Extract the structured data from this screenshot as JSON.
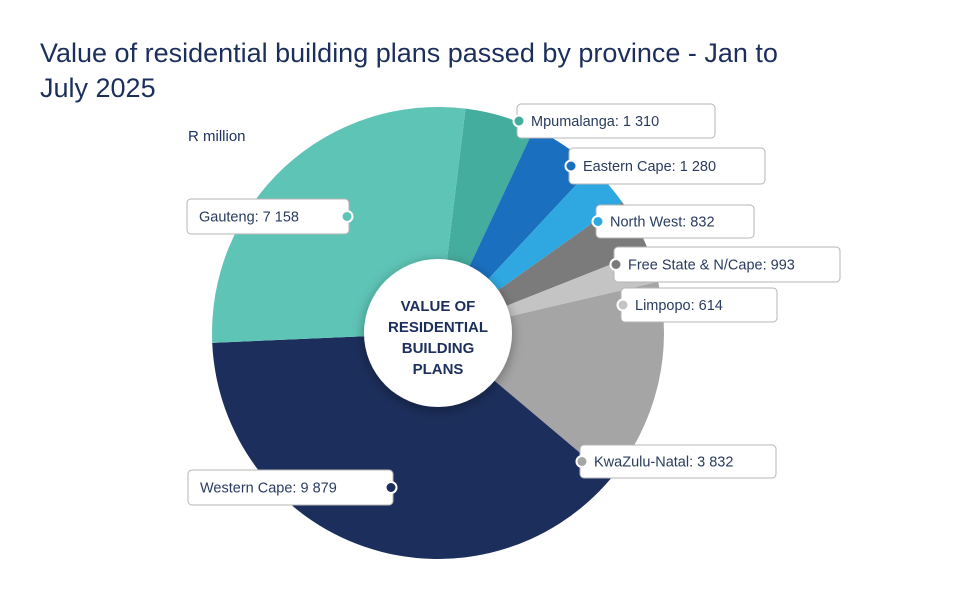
{
  "chart_data": {
    "type": "pie",
    "title": "Value of residential building plans passed by province - Jan to July 2025",
    "unit": "R million",
    "center_label": [
      "VALUE OF",
      "RESIDENTIAL",
      "BUILDING",
      "PLANS"
    ],
    "slices": [
      {
        "name": "Mpumalanga",
        "value": 1310,
        "value_text": "1 310",
        "color": "#45ad9d",
        "text": "Mpumalanga: 1 310"
      },
      {
        "name": "Eastern Cape",
        "value": 1280,
        "value_text": "1 280",
        "color": "#1a6fbf",
        "text": "Eastern Cape: 1 280"
      },
      {
        "name": "North West",
        "value": 832,
        "value_text": "832",
        "color": "#2fa8e2",
        "text": "North West: 832"
      },
      {
        "name": "Free State & N/Cape",
        "value": 993,
        "value_text": "993",
        "color": "#7b7b7b",
        "text": "Free State & N/Cape: 993"
      },
      {
        "name": "Limpopo",
        "value": 614,
        "value_text": "614",
        "color": "#c4c4c4",
        "text": "Limpopo: 614"
      },
      {
        "name": "KwaZulu-Natal",
        "value": 3832,
        "value_text": "3 832",
        "color": "#a5a5a5",
        "text": "KwaZulu-Natal: 3 832"
      },
      {
        "name": "Western Cape",
        "value": 9879,
        "value_text": "9 879",
        "color": "#1c2f5c",
        "text": "Western Cape: 9 879"
      },
      {
        "name": "Gauteng",
        "value": 7158,
        "value_text": "7 158",
        "color": "#5ec4b6",
        "text": "Gauteng: 7 158"
      }
    ]
  }
}
